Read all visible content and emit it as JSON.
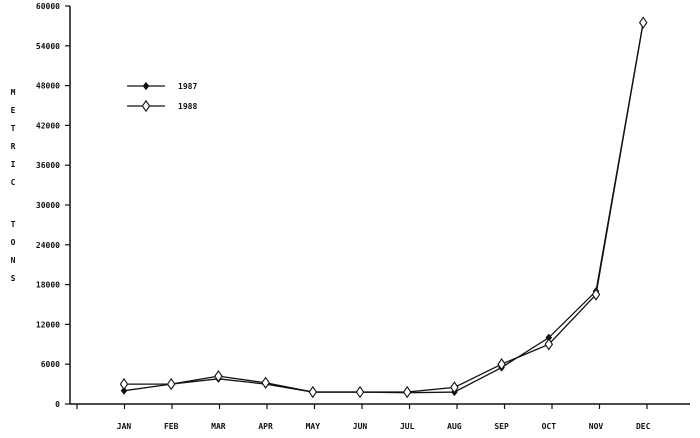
{
  "chart_data": {
    "type": "line",
    "ylabel": "METRIC TONS",
    "xlabel": "",
    "title": "",
    "categories": [
      "JAN",
      "FEB",
      "MAR",
      "APR",
      "MAY",
      "JUN",
      "JUL",
      "AUG",
      "SEP",
      "OCT",
      "NOV",
      "DEC"
    ],
    "y_ticks": [
      "0",
      "6000",
      "12000",
      "18000",
      "24000",
      "30000",
      "36000",
      "42000",
      "48000",
      "54000",
      "60000"
    ],
    "ylim": [
      0,
      60000
    ],
    "grid": false,
    "legend_position": "top-left",
    "series": [
      {
        "name": "1987",
        "marker": "small-diamond",
        "values": [
          2000,
          3000,
          3800,
          3000,
          1800,
          1800,
          1700,
          1800,
          5500,
          10000,
          17000,
          57500
        ]
      },
      {
        "name": "1988",
        "marker": "large-diamond",
        "values": [
          3000,
          3000,
          4200,
          3200,
          1800,
          1800,
          1800,
          2500,
          6000,
          9000,
          16500,
          57500
        ]
      }
    ],
    "colors": {
      "line": "#111111",
      "background": "#ffffff"
    }
  }
}
